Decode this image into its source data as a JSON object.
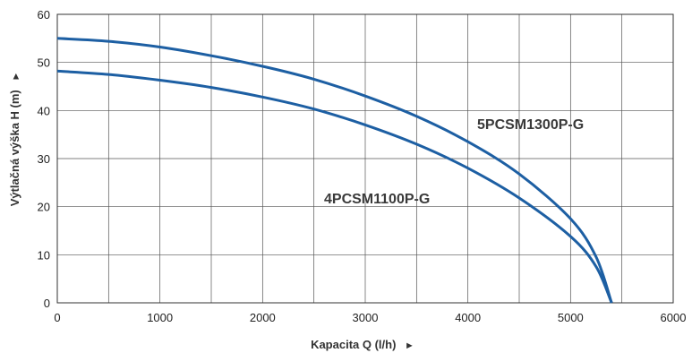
{
  "chart_data": {
    "type": "line",
    "xlabel": "Kapacita Q (l/h)",
    "ylabel": "Výtlačná výška H (m)",
    "xlim": [
      0,
      6000
    ],
    "ylim": [
      0,
      60
    ],
    "x_ticks": [
      "0",
      "1000",
      "2000",
      "3000",
      "4000",
      "5000",
      "6000"
    ],
    "y_ticks": [
      "0",
      "10",
      "20",
      "30",
      "40",
      "50",
      "60"
    ],
    "x_minor_step": 500,
    "grid": true,
    "arrow_glyph": "►",
    "line_color": "#1d5fa3",
    "grid_color": "#555555",
    "series": [
      {
        "name": "5PCSM1300P-G",
        "x": [
          0,
          500,
          1000,
          1500,
          2000,
          2500,
          3000,
          3500,
          4000,
          4500,
          5000,
          5250,
          5400
        ],
        "y": [
          55,
          54.4,
          53.2,
          51.4,
          49.2,
          46.5,
          43.0,
          38.8,
          33.5,
          26.8,
          17.5,
          9.5,
          0
        ]
      },
      {
        "name": "4PCSM1100P-G",
        "x": [
          0,
          500,
          1000,
          1500,
          2000,
          2500,
          3000,
          3500,
          4000,
          4500,
          5000,
          5250,
          5400
        ],
        "y": [
          48.2,
          47.5,
          46.3,
          44.8,
          42.8,
          40.3,
          37.0,
          33.0,
          28.0,
          21.8,
          13.8,
          7.5,
          0
        ]
      }
    ]
  }
}
